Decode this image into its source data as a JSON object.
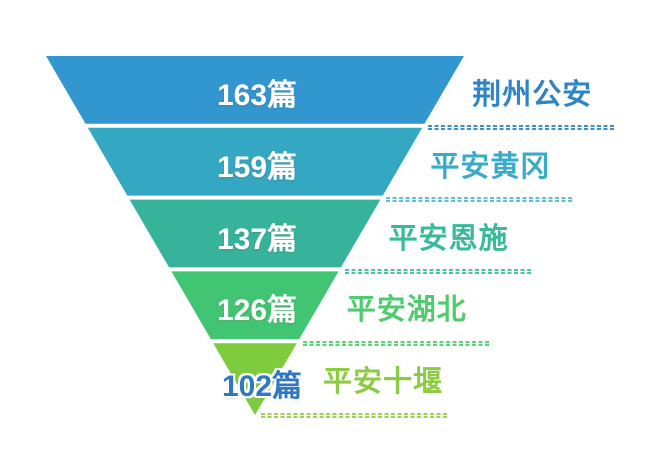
{
  "chart_data": {
    "type": "funnel",
    "orientation": "inverted-pyramid",
    "title": "",
    "unit": "篇",
    "background": "#FFFFFF",
    "legend": "none",
    "layout_hints": {
      "segments": "equal height, straight triangle sides, white gaps between segments",
      "labels": "category names right of funnel above dashed leader lines; values inside segments except smallest which is outside at tip"
    },
    "items": [
      {
        "name": "荆州公安",
        "value": 163,
        "value_label": "163篇",
        "segment_color": "#3296CF",
        "name_color": "#2E84C6",
        "line_color": "#3E8FCD",
        "value_text_color": "#FFFFFF",
        "value_outside": false
      },
      {
        "name": "平安黄冈",
        "value": 159,
        "value_label": "159篇",
        "segment_color": "#34A7C3",
        "name_color": "#39ABC9",
        "line_color": "#5FC0D6",
        "value_text_color": "#FFFFFF",
        "value_outside": false
      },
      {
        "name": "平安恩施",
        "value": 137,
        "value_label": "137篇",
        "segment_color": "#36B39A",
        "name_color": "#39BB9B",
        "line_color": "#4FC3A6",
        "value_text_color": "#FFFFFF",
        "value_outside": false
      },
      {
        "name": "平安湖北",
        "value": 126,
        "value_label": "126篇",
        "segment_color": "#42C573",
        "name_color": "#50CB6E",
        "line_color": "#5ED17B",
        "value_text_color": "#FFFFFF",
        "value_outside": false
      },
      {
        "name": "平安十堰",
        "value": 102,
        "value_label": "102篇",
        "segment_color": "#7ECB3D",
        "name_color": "#8CCC44",
        "line_color": "#9AD355",
        "value_text_color": "#3077C5",
        "value_outside": true
      }
    ]
  }
}
